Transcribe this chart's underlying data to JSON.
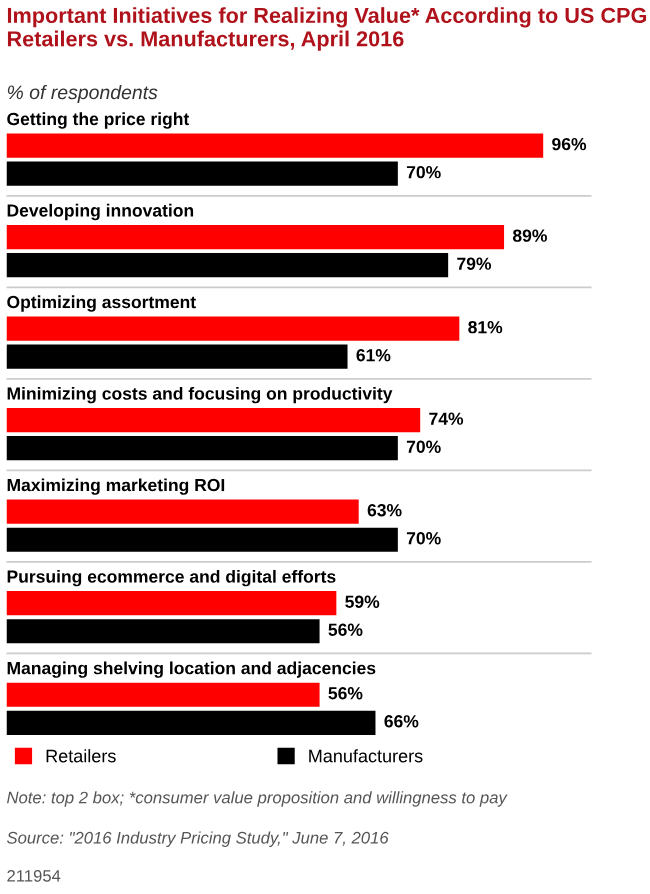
{
  "chart_data": {
    "type": "bar",
    "orientation": "horizontal",
    "title": "Important Initiatives for Realizing Value* According to US CPG Retailers vs. Manufacturers, April 2016",
    "subtitle": "% of respondents",
    "categories": [
      "Getting the price right",
      "Developing innovation",
      "Optimizing assortment",
      "Minimizing costs and focusing on productivity",
      "Maximizing marketing ROI",
      "Pursuing ecommerce and digital efforts",
      "Managing shelving location and adjacencies"
    ],
    "series": [
      {
        "name": "Retailers",
        "color": "#ff0000",
        "values": [
          96,
          89,
          81,
          74,
          63,
          59,
          56
        ],
        "value_labels": [
          "96%",
          "89%",
          "81%",
          "74%",
          "63%",
          "59%",
          "56%"
        ]
      },
      {
        "name": "Manufacturers",
        "color": "#000000",
        "values": [
          70,
          79,
          61,
          70,
          70,
          56,
          66
        ],
        "value_labels": [
          "70%",
          "79%",
          "61%",
          "70%",
          "70%",
          "56%",
          "66%"
        ]
      }
    ],
    "legend": "bottom",
    "annotations": [
      "Note: top 2 box; *consumer value proposition and willingness to pay",
      "Source: \"2016 Industry Pricing Study,\" June 7, 2016",
      "211954"
    ]
  }
}
